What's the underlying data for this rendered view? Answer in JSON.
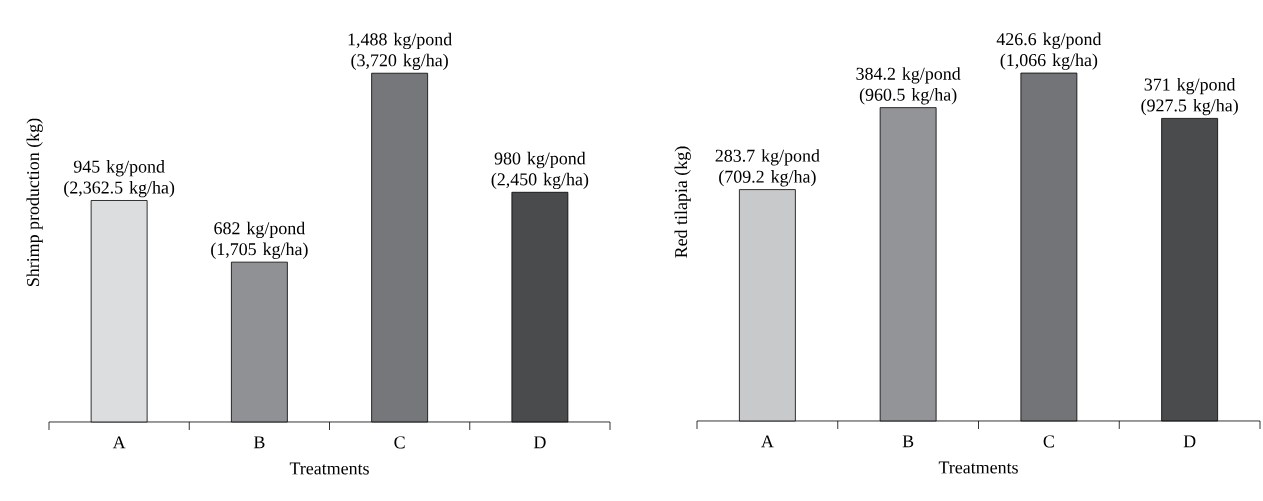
{
  "chart_data": [
    {
      "type": "bar",
      "xlabel": "Treatments",
      "ylabel": "Shrimp production (kg)",
      "categories": [
        "A",
        "B",
        "C",
        "D"
      ],
      "values": [
        945,
        682,
        1488,
        980
      ],
      "colors": [
        "#dcdddf",
        "#909195",
        "#76777b",
        "#4a4b4d"
      ],
      "value_labels": [
        "945 kg/pond (2,362.5 kg/ha)",
        "682 kg/pond (1,705 kg/ha)",
        "1,488 kg/pond (3,720 kg/ha)",
        "980 kg/pond (2,450 kg/ha)"
      ],
      "tick_labels": "x"
    },
    {
      "type": "bar",
      "xlabel": "Treatments",
      "ylabel": "Red tilapia (kg)",
      "categories": [
        "A",
        "B",
        "C",
        "D"
      ],
      "values": [
        283.7,
        384.2,
        426.6,
        371
      ],
      "colors": [
        "#c8c9cb",
        "#939498",
        "#737478",
        "#4a4b4d"
      ],
      "value_labels": [
        "283.7 kg/pond (709.2 kg/ha)",
        "384.2 kg/pond (960.5 kg/ha)",
        "426.6 kg/pond (1,066 kg/ha)",
        "371 kg/pond (927.5 kg/ha)"
      ],
      "tick_labels": "x"
    }
  ]
}
